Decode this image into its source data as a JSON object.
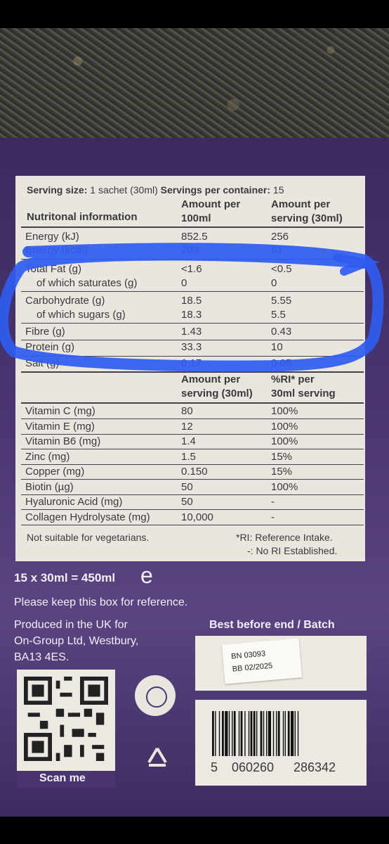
{
  "serving_line": {
    "label": "Serving size:",
    "value": "1 sachet (30ml)",
    "servings_label": "Servings per container:",
    "servings_value": "15"
  },
  "headers": {
    "nutri": "Nutritonal information",
    "per100_1": "Amount per",
    "per100_2": "100ml",
    "perserv_1": "Amount per",
    "perserv_2": "serving (30ml)"
  },
  "nutrition_rows": [
    {
      "name": "Energy (kJ)",
      "per100": "852.5",
      "per_serving": "256"
    },
    {
      "name": "Energy (kcal)",
      "per100": "203",
      "per_serving": "61"
    },
    {
      "name": "Total Fat (g)",
      "per100": "<1.6",
      "per_serving": "<0.5"
    },
    {
      "name": "of which saturates (g)",
      "per100": "0",
      "per_serving": "0"
    },
    {
      "name": "Carbohydrate (g)",
      "per100": "18.5",
      "per_serving": "5.55"
    },
    {
      "name": "of which sugars (g)",
      "per100": "18.3",
      "per_serving": "5.5"
    },
    {
      "name": "Fibre (g)",
      "per100": "1.43",
      "per_serving": "0.43"
    },
    {
      "name": "Protein (g)",
      "per100": "33.3",
      "per_serving": "10"
    },
    {
      "name": "Salt (g)",
      "per100": "0.17",
      "per_serving": "0.05"
    }
  ],
  "vit_headers": {
    "a1": "Amount per",
    "a2": "serving (30ml)",
    "r1": "%RI* per",
    "r2": "30ml serving"
  },
  "vitamin_rows": [
    {
      "name": "Vitamin C (mg)",
      "amount": "80",
      "ri": "100%"
    },
    {
      "name": "Vitamin E (mg)",
      "amount": "12",
      "ri": "100%"
    },
    {
      "name": "Vitamin B6 (mg)",
      "amount": "1.4",
      "ri": "100%"
    },
    {
      "name": "Zinc (mg)",
      "amount": "1.5",
      "ri": "15%"
    },
    {
      "name": "Copper (mg)",
      "amount": "0.150",
      "ri": "15%"
    },
    {
      "name": "Biotin (µg)",
      "amount": "50",
      "ri": "100%"
    },
    {
      "name": "Hyaluronic Acid (mg)",
      "amount": "50",
      "ri": "-"
    },
    {
      "name": "Collagen Hydrolysate (mg)",
      "amount": "10,000",
      "ri": "-"
    }
  ],
  "footnotes": {
    "veg": "Not suitable for vegetarians.",
    "ri1": "*RI: Reference Intake.",
    "ri2": "-: No RI Established."
  },
  "pack": {
    "quantity": "15 x 30ml = 450ml",
    "e_mark": "e",
    "keep": "Please keep this box for reference.",
    "produced1": "Produced in the UK for",
    "produced2": "On-Group Ltd, Westbury,",
    "produced3": "BA13 4ES.",
    "best_before": "Best before end / Batch",
    "batch": "BN 03093",
    "bb": "BB 02/2025",
    "scan": "Scan me",
    "barcode_digits_1": "5",
    "barcode_digits_2": "060260",
    "barcode_digits_3": "286342"
  },
  "colors": {
    "purple": "#4a3570",
    "panel": "#e9e6df",
    "highlight": "#2f5cf0"
  }
}
